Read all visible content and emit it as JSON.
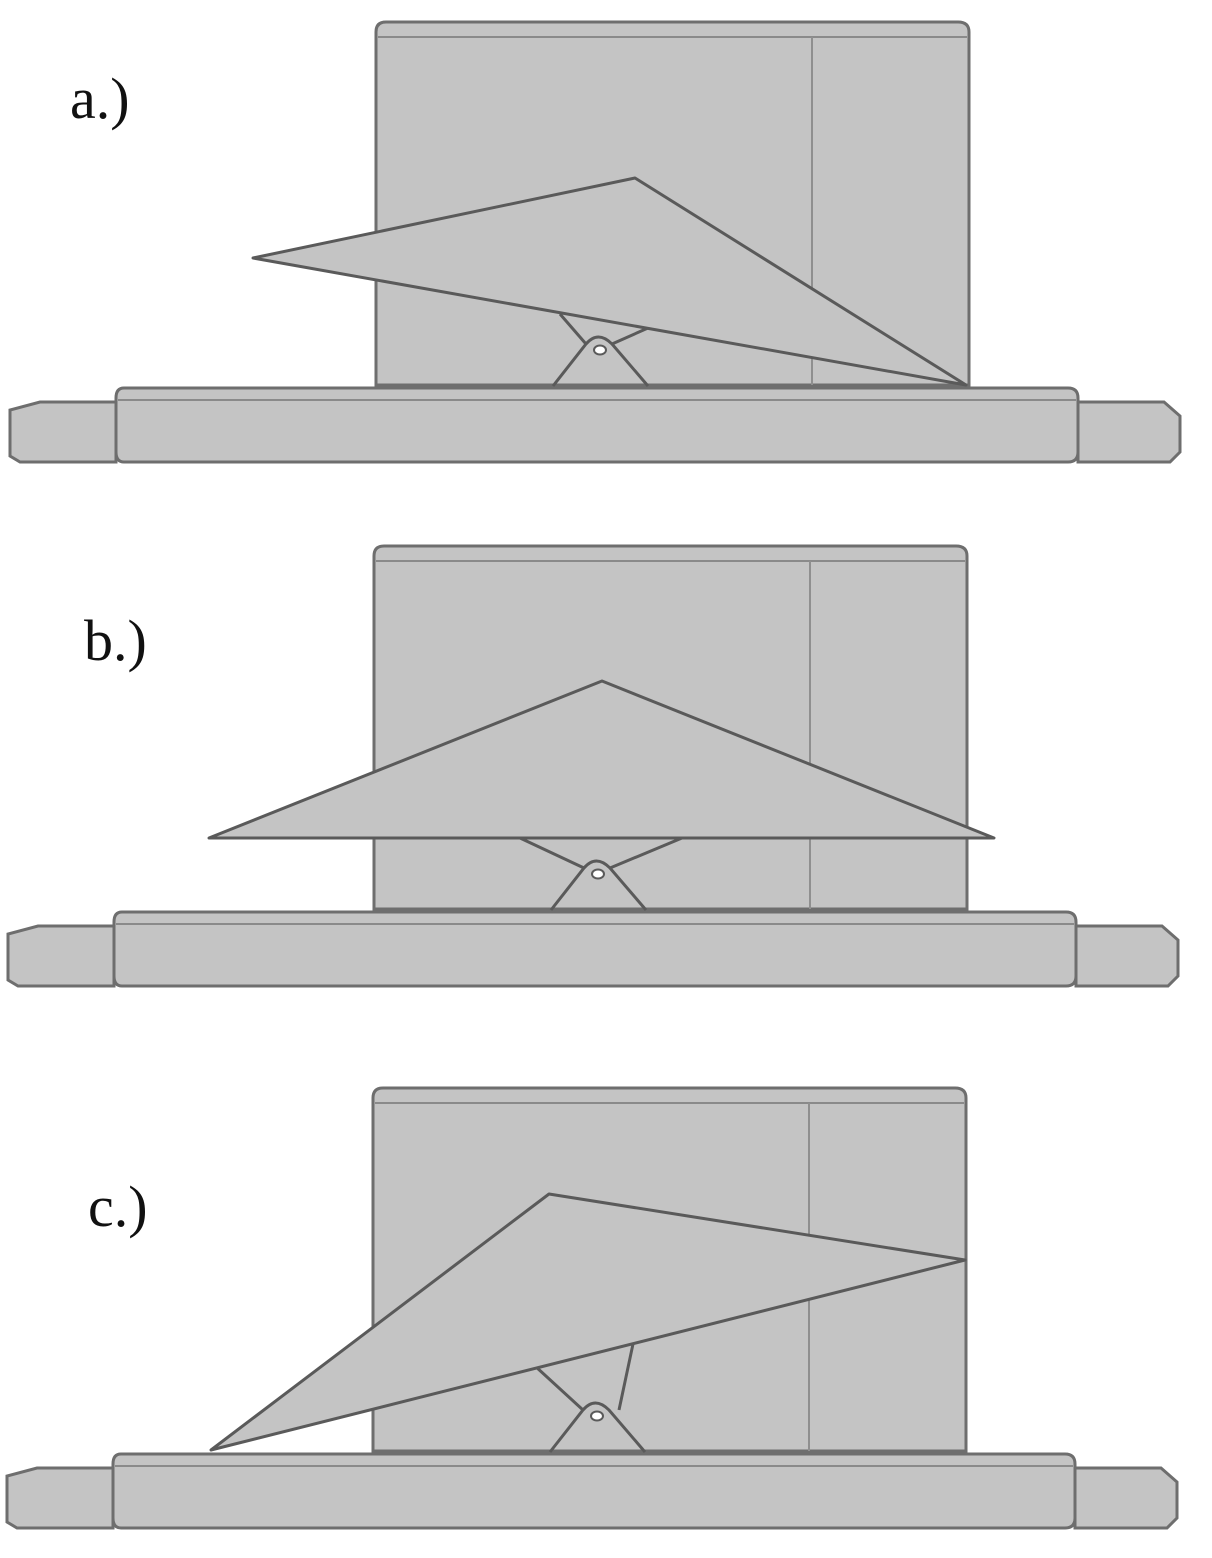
{
  "panels": [
    {
      "label": "a.)"
    },
    {
      "label": "b.)"
    },
    {
      "label": "c.)"
    }
  ],
  "colors": {
    "body_fill": "#c4c4c4",
    "stroke": "#6e6e6e",
    "dark_stroke": "#555555",
    "background": "#ffffff"
  }
}
